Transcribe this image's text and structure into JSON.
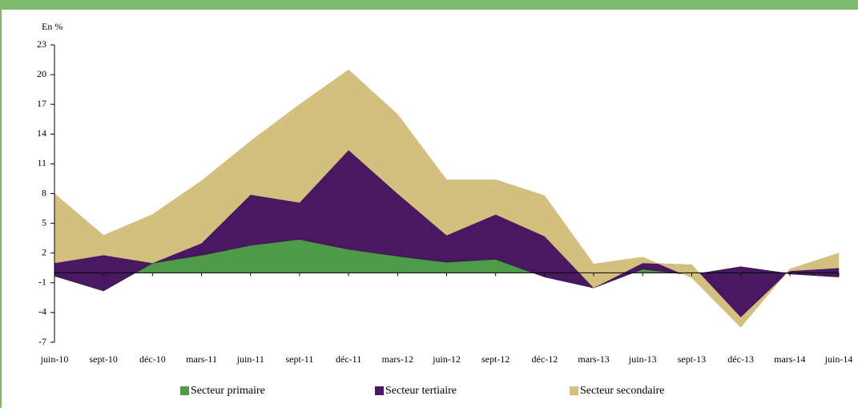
{
  "chart_data": {
    "type": "stacked_area",
    "y_label": "En %",
    "categories": [
      "juin-10",
      "sept-10",
      "déc-10",
      "mars-11",
      "juin-11",
      "sept-11",
      "déc-11",
      "mars-12",
      "juin-12",
      "sept-12",
      "déc-12",
      "mars-13",
      "juin-13",
      "sept-13",
      "déc-13",
      "mars-14",
      "juin-14"
    ],
    "series": [
      {
        "name": "Secteur primaire",
        "color": "#4e9a48",
        "values": [
          -0.3,
          -1.8,
          1.0,
          1.8,
          2.8,
          3.4,
          2.4,
          1.7,
          1.1,
          1.4,
          -0.4,
          -1.5,
          0.4,
          -0.2,
          0.6,
          -0.1,
          -0.4
        ]
      },
      {
        "name": "Secteur tertiaire",
        "color": "#4a1862",
        "values": [
          1.3,
          3.6,
          0.0,
          1.2,
          5.1,
          3.7,
          10.0,
          6.3,
          2.7,
          4.5,
          4.1,
          0.0,
          0.6,
          1.0,
          -5.1,
          0.3,
          0.9
        ]
      },
      {
        "name": "Secteur secondaire",
        "color": "#d3bf7e",
        "values": [
          7.0,
          2.0,
          4.9,
          6.3,
          5.4,
          9.9,
          8.1,
          8.0,
          5.6,
          3.5,
          4.1,
          2.4,
          0.6,
          -1.3,
          -1.0,
          0.2,
          1.5
        ]
      }
    ],
    "ylim": [
      -7,
      23
    ],
    "yticks": [
      -7,
      -4,
      -1,
      2,
      5,
      8,
      11,
      14,
      17,
      20,
      23
    ]
  }
}
